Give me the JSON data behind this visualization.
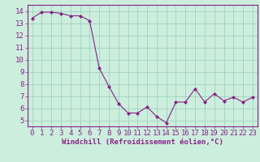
{
  "x": [
    0,
    1,
    2,
    3,
    4,
    5,
    6,
    7,
    8,
    9,
    10,
    11,
    12,
    13,
    14,
    15,
    16,
    17,
    18,
    19,
    20,
    21,
    22,
    23
  ],
  "y": [
    13.4,
    13.9,
    13.9,
    13.8,
    13.6,
    13.6,
    13.2,
    9.3,
    7.8,
    6.4,
    5.6,
    5.6,
    6.1,
    5.3,
    4.8,
    6.5,
    6.5,
    7.6,
    6.5,
    7.2,
    6.6,
    6.9,
    6.5,
    6.9
  ],
  "line_color": "#882288",
  "marker": "D",
  "marker_size": 2.0,
  "bg_color": "#cceedd",
  "grid_color": "#99ccbb",
  "xlabel": "Windchill (Refroidissement éolien,°C)",
  "xlabel_color": "#882288",
  "tick_color": "#882288",
  "ylim": [
    4.5,
    14.5
  ],
  "xlim": [
    -0.5,
    23.5
  ],
  "yticks": [
    5,
    6,
    7,
    8,
    9,
    10,
    11,
    12,
    13,
    14
  ],
  "xticks": [
    0,
    1,
    2,
    3,
    4,
    5,
    6,
    7,
    8,
    9,
    10,
    11,
    12,
    13,
    14,
    15,
    16,
    17,
    18,
    19,
    20,
    21,
    22,
    23
  ],
  "spine_color": "#882288",
  "font_size": 6.5,
  "xlabel_fontsize": 6.5,
  "lw": 0.8
}
